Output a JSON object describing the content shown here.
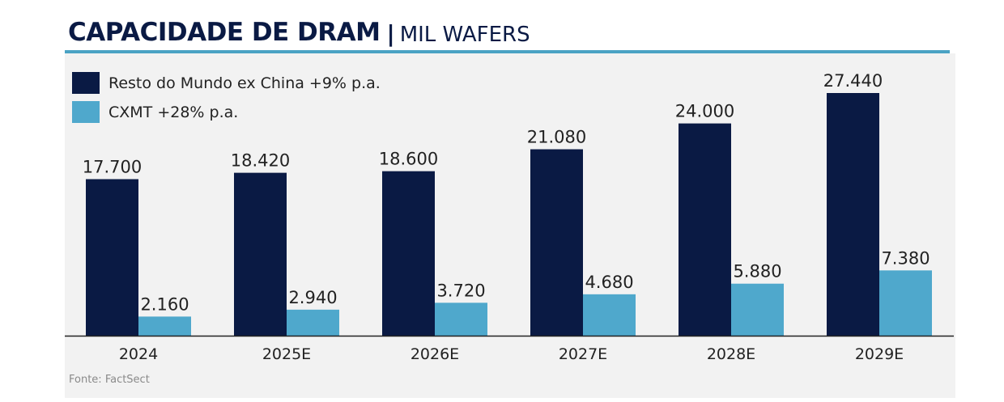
{
  "header": {
    "title": "CAPACIDADE DE DRAM",
    "separator": "|",
    "subtitle": "MIL WAFERS"
  },
  "source": "Fonte: FactSect",
  "colors": {
    "title": "#0a1a44",
    "accent": "#4aa3c4",
    "series_dark": "#0a1a44",
    "series_light": "#4fa8cc",
    "panel": "#f2f2f2",
    "axis": "#222222"
  },
  "chart_data": {
    "type": "bar",
    "title": "CAPACIDADE DE DRAM | MIL WAFERS",
    "categories": [
      "2024",
      "2025E",
      "2026E",
      "2027E",
      "2028E",
      "2029E"
    ],
    "series": [
      {
        "name": "Resto do Mundo ex China +9% p.a.",
        "values": [
          17700,
          18420,
          18600,
          21080,
          24000,
          27440
        ],
        "labels": [
          "17.700",
          "18.420",
          "18.600",
          "21.080",
          "24.000",
          "27.440"
        ]
      },
      {
        "name": "CXMT +28% p.a.",
        "values": [
          2160,
          2940,
          3720,
          4680,
          5880,
          7380
        ],
        "labels": [
          "2.160",
          "2.940",
          "3.720",
          "4.680",
          "5.880",
          "7.380"
        ]
      }
    ],
    "ylim": [
      0,
      30000
    ],
    "grid": false,
    "legend": "top-left"
  }
}
